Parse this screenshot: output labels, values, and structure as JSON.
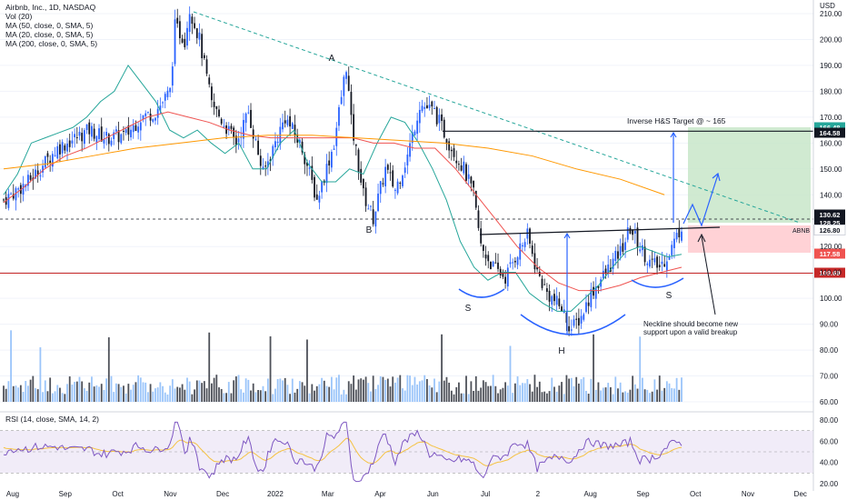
{
  "legend": {
    "title": "Airbnb, Inc., 1D, NASDAQ",
    "lines": [
      "Vol (20)",
      "MA (50, close, 0, SMA, 5)",
      "MA (20, close, 0, SMA, 5)",
      "MA (200, close, 0, SMA, 5)"
    ],
    "rsi": "RSI (14, close, SMA, 14, 2)"
  },
  "colors": {
    "up": "#2962ff",
    "down": "#131722",
    "ma20": "#26a69a",
    "ma50": "#ef5350",
    "ma200": "#ff9800",
    "trend": "#26a69a",
    "target": "#2962ff",
    "rsi": "#7e57c2",
    "rsi_ma": "#f5c242",
    "support": "#c62828"
  },
  "chart_data": {
    "type": "candlestick",
    "symbol": "ABNB",
    "price_axis": {
      "currency": "USD",
      "ticks": [
        210,
        200,
        190,
        180,
        170,
        160,
        150,
        140,
        120,
        110,
        100,
        90,
        80,
        70,
        60
      ],
      "ylim": [
        57,
        213
      ]
    },
    "x_axis": {
      "labels": [
        "Aug",
        "Sep",
        "Oct",
        "Nov",
        "Dec",
        "2022",
        "Mar",
        "Apr",
        "Jun",
        "Jul",
        "2",
        "Aug",
        "Sep",
        "Oct",
        "Nov",
        "Dec"
      ]
    },
    "ohlc_keypoints": [
      {
        "t": 0,
        "c": 138
      },
      {
        "t": 10,
        "c": 145
      },
      {
        "t": 22,
        "c": 158
      },
      {
        "t": 35,
        "c": 165
      },
      {
        "t": 42,
        "c": 162
      },
      {
        "t": 50,
        "c": 163
      },
      {
        "t": 56,
        "c": 170
      },
      {
        "t": 62,
        "c": 172
      },
      {
        "t": 68,
        "c": 180
      },
      {
        "t": 70,
        "c": 205
      },
      {
        "t": 74,
        "c": 200
      },
      {
        "t": 76,
        "c": 212
      },
      {
        "t": 80,
        "c": 200
      },
      {
        "t": 85,
        "c": 175
      },
      {
        "t": 95,
        "c": 160
      },
      {
        "t": 100,
        "c": 172
      },
      {
        "t": 106,
        "c": 148
      },
      {
        "t": 115,
        "c": 170
      },
      {
        "t": 122,
        "c": 158
      },
      {
        "t": 128,
        "c": 138
      },
      {
        "t": 135,
        "c": 160
      },
      {
        "t": 140,
        "c": 190
      },
      {
        "t": 142,
        "c": 168
      },
      {
        "t": 147,
        "c": 140
      },
      {
        "t": 151,
        "c": 131
      },
      {
        "t": 156,
        "c": 150
      },
      {
        "t": 160,
        "c": 142
      },
      {
        "t": 165,
        "c": 155
      },
      {
        "t": 170,
        "c": 175
      },
      {
        "t": 176,
        "c": 172
      },
      {
        "t": 182,
        "c": 160
      },
      {
        "t": 188,
        "c": 150
      },
      {
        "t": 192,
        "c": 140
      },
      {
        "t": 195,
        "c": 120
      },
      {
        "t": 200,
        "c": 112
      },
      {
        "t": 205,
        "c": 108
      },
      {
        "t": 210,
        "c": 118
      },
      {
        "t": 214,
        "c": 124
      },
      {
        "t": 218,
        "c": 110
      },
      {
        "t": 222,
        "c": 102
      },
      {
        "t": 228,
        "c": 96
      },
      {
        "t": 232,
        "c": 88
      },
      {
        "t": 236,
        "c": 93
      },
      {
        "t": 240,
        "c": 102
      },
      {
        "t": 246,
        "c": 110
      },
      {
        "t": 252,
        "c": 118
      },
      {
        "t": 256,
        "c": 127
      },
      {
        "t": 260,
        "c": 120
      },
      {
        "t": 264,
        "c": 114
      },
      {
        "t": 268,
        "c": 112
      },
      {
        "t": 272,
        "c": 118
      },
      {
        "t": 275,
        "c": 124
      },
      {
        "t": 277,
        "c": 128
      }
    ],
    "series_ma": [
      {
        "name": "MA 20",
        "values": [
          140,
          148,
          160,
          162,
          164,
          166,
          170,
          176,
          180,
          190,
          183,
          176,
          165,
          162,
          165,
          160,
          156,
          160,
          150,
          150,
          160,
          165,
          152,
          145,
          145,
          150,
          148,
          160,
          170,
          168,
          160,
          150,
          138,
          122,
          112,
          107,
          110,
          110,
          102,
          98,
          95,
          95,
          100,
          105,
          112,
          118,
          120,
          118,
          116,
          117
        ]
      },
      {
        "name": "MA 50",
        "values": [
          137,
          143,
          150,
          155,
          158,
          162,
          166,
          170,
          172,
          170,
          168,
          165,
          163,
          162,
          162,
          162,
          162,
          162,
          160,
          160,
          158,
          158,
          150,
          140,
          130,
          120,
          112,
          106,
          103,
          103,
          105,
          108,
          110,
          112
        ]
      },
      {
        "name": "MA 200",
        "values": [
          150,
          152,
          155,
          158,
          160,
          162,
          163,
          163,
          162,
          161,
          160,
          158,
          155,
          150,
          146,
          140
        ]
      }
    ],
    "annotations": {
      "points": [
        {
          "label": "A"
        },
        {
          "label": "B"
        },
        {
          "label": "S"
        },
        {
          "label": "H"
        },
        {
          "label": "S"
        }
      ],
      "target_text": "Inverse H&S Target @ ~ 165",
      "neckline_text": "Neckline should become new support upon a valid breakup",
      "neckline_level": 128.25,
      "support_level": 109.69,
      "target_level": 164.58,
      "stop_level": 117.58
    },
    "price_labels": [
      {
        "value": "166.48",
        "bg": "#26a69a"
      },
      {
        "value": "164.58",
        "bg": "#131722"
      },
      {
        "value": "130.62",
        "bg": "#131722"
      },
      {
        "value": "128.25",
        "bg": "#131722"
      },
      {
        "value": "126.80",
        "bg": "#ffffff",
        "fg": "#131722"
      },
      {
        "value": "117.58",
        "bg": "#ef5350"
      },
      {
        "value": "109.69",
        "bg": "#c62828"
      }
    ],
    "ticker_label": "ABNB",
    "rsi": {
      "ticks": [
        80,
        60,
        40,
        20
      ],
      "upper": 70,
      "lower": 30
    }
  }
}
